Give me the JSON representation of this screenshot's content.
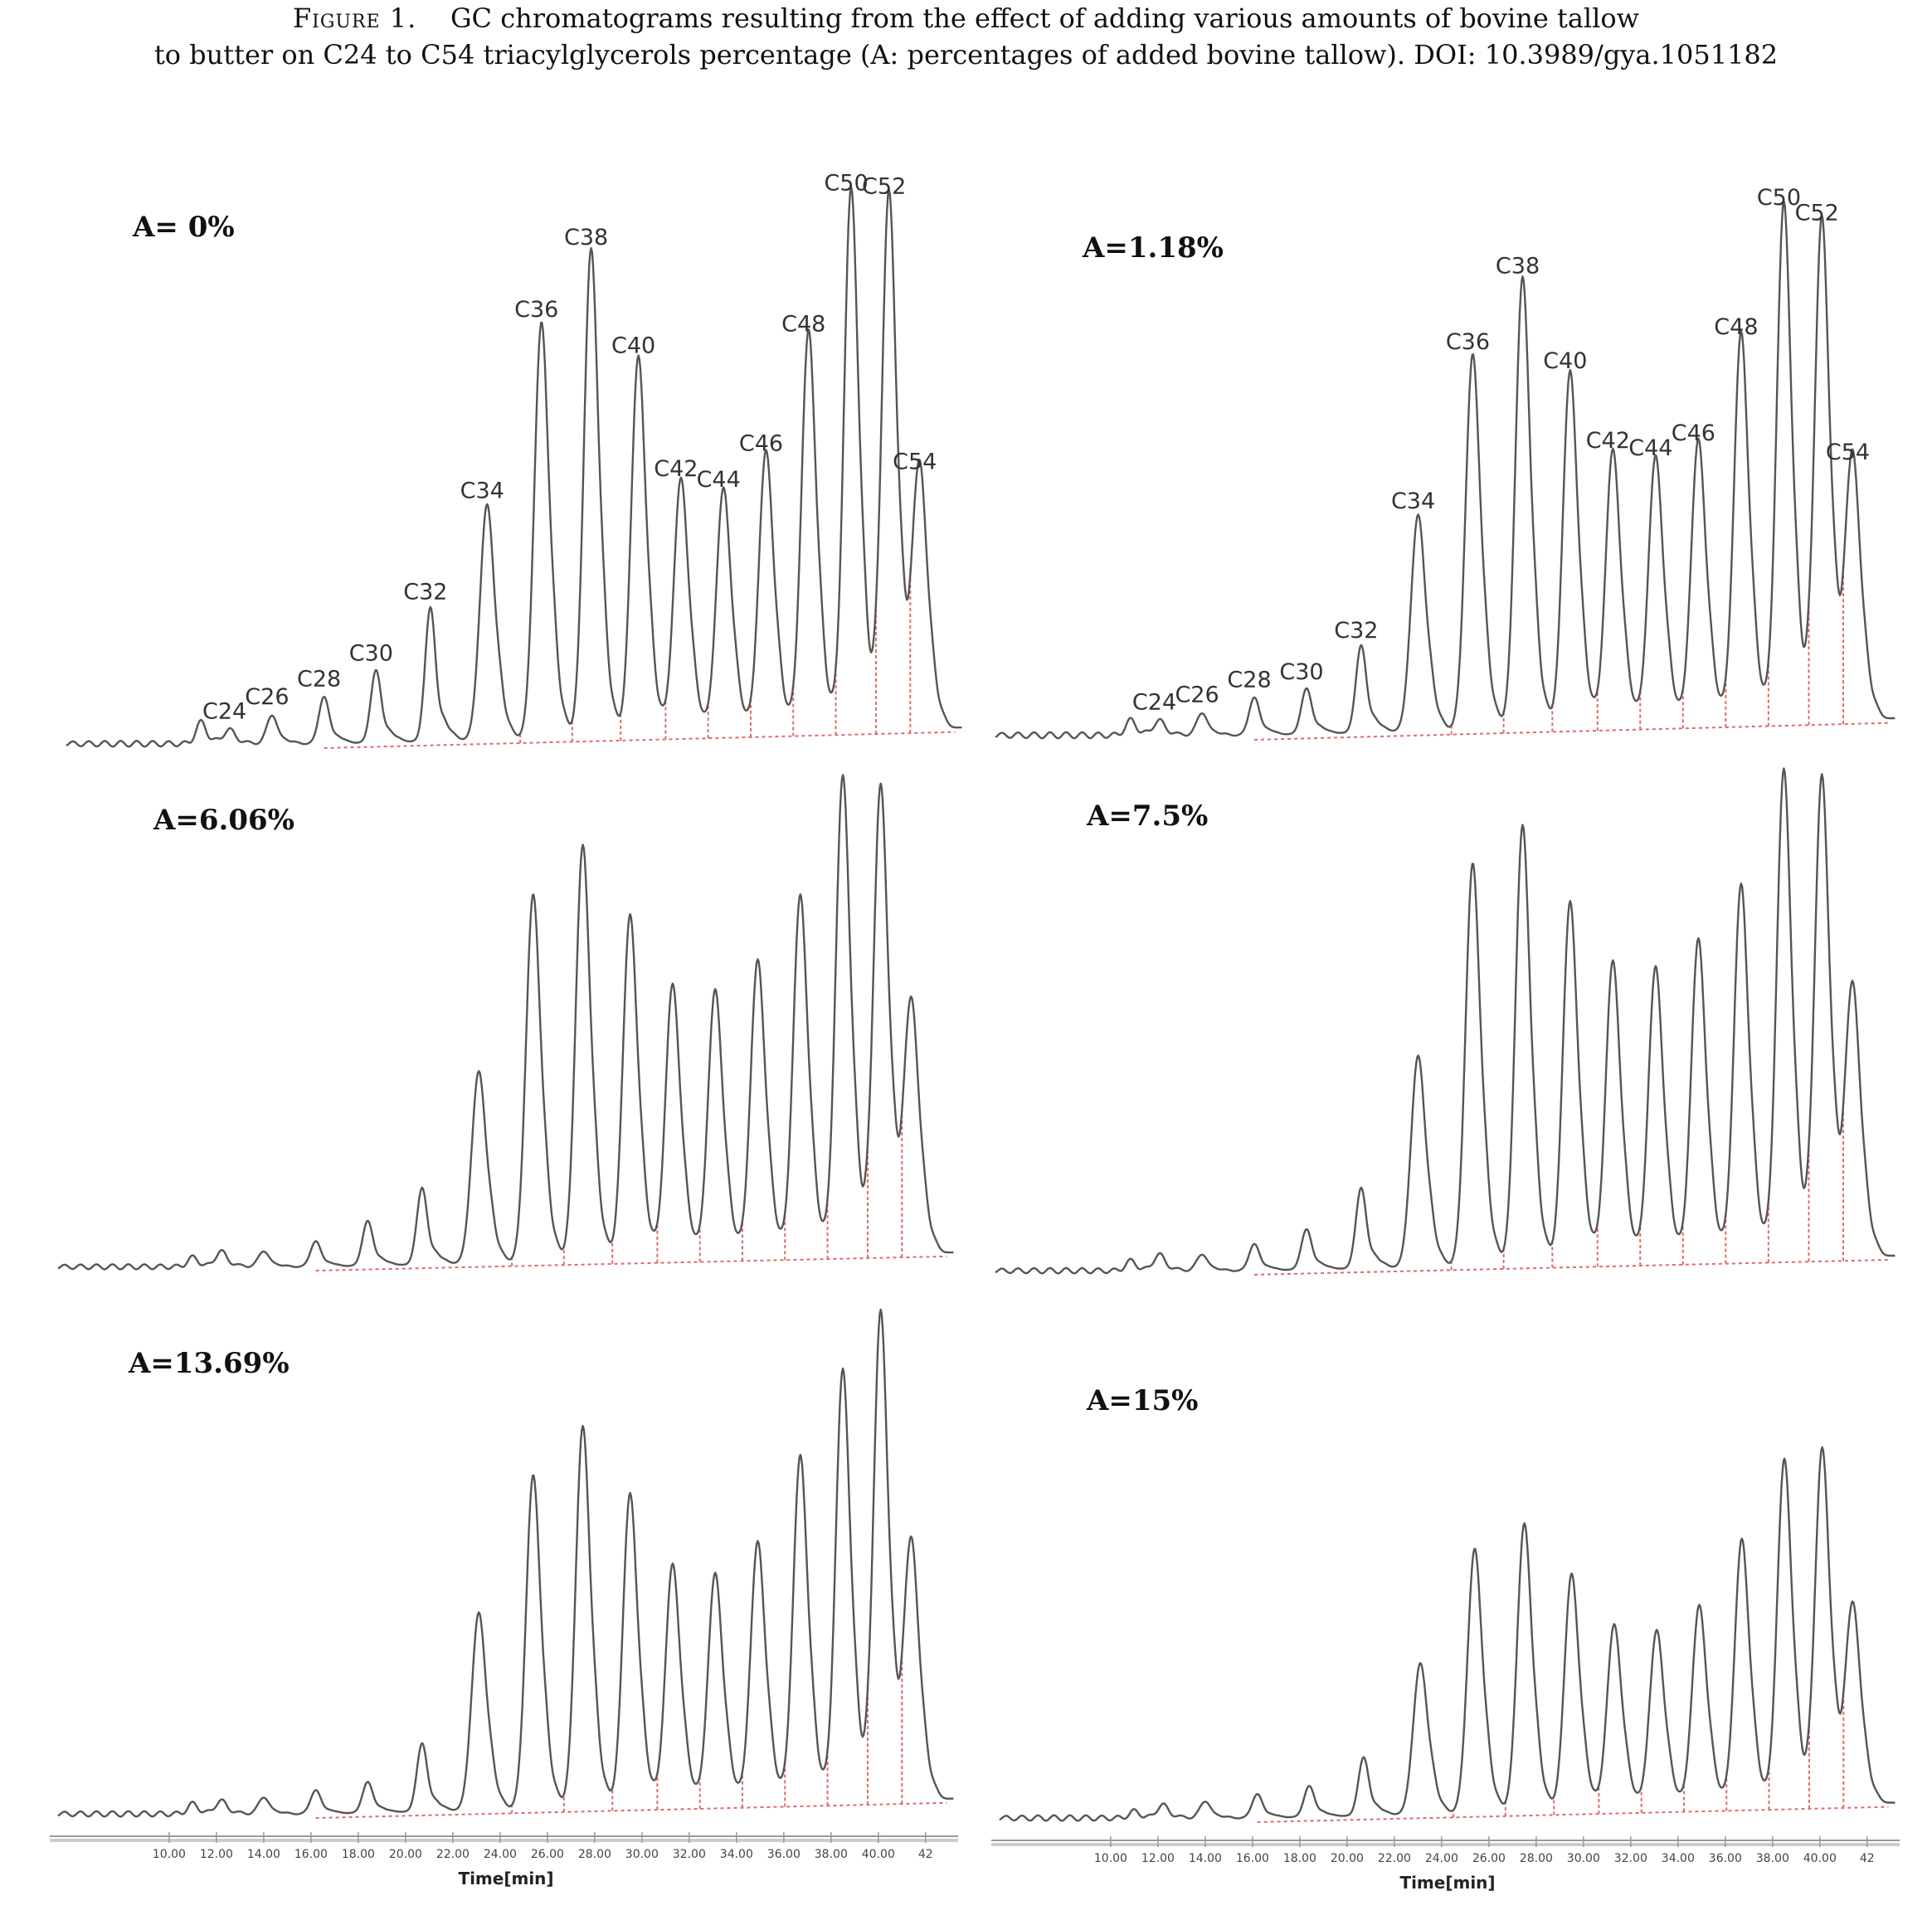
{
  "caption": {
    "figure_label": "Figure 1.",
    "line1": "GC chromatograms resulting from the effect of adding various amounts of bovine tallow",
    "line2": "to butter on C24 to C54 triacylglycerols percentage (A: percentages of added bovine tallow). DOI: 10.3989/gya.1051182"
  },
  "colors": {
    "trace": "#555555",
    "baseline": "#e06a6a",
    "axis": "#999999"
  },
  "chart_data": [
    {
      "type": "line",
      "panel_label": "A= 0%",
      "x": [
        11.0,
        12.2,
        14.0,
        16.2,
        18.4,
        20.7,
        23.1,
        25.4,
        27.5,
        29.5,
        31.3,
        33.1,
        34.9,
        36.7,
        38.5,
        40.1,
        41.4
      ],
      "y": [
        6,
        4,
        8,
        13,
        20,
        37,
        65,
        115,
        135,
        105,
        71,
        68,
        78,
        111,
        150,
        149,
        73
      ],
      "peak_labels": [
        "",
        "C24",
        "C26",
        "C28",
        "C30",
        "C32",
        "C34",
        "C36",
        "C38",
        "C40",
        "C42",
        "C44",
        "C46",
        "C48",
        "C50",
        "C52",
        "C54"
      ],
      "xlim": [
        5.3,
        43.2
      ],
      "ylim": [
        0,
        170
      ],
      "xlabel": "",
      "x_ticks": []
    },
    {
      "type": "line",
      "panel_label": "A=1.18%",
      "x": [
        11.0,
        12.2,
        14.0,
        16.2,
        18.4,
        20.7,
        23.1,
        25.4,
        27.5,
        29.5,
        31.3,
        33.1,
        34.9,
        36.7,
        38.5,
        40.1,
        41.4
      ],
      "y": [
        4,
        4,
        6,
        10,
        12,
        23,
        57,
        99,
        119,
        94,
        73,
        71,
        75,
        103,
        137,
        133,
        70
      ],
      "peak_labels": [
        "",
        "C24",
        "C26",
        "C28",
        "C30",
        "C32",
        "C34",
        "C36",
        "C38",
        "C40",
        "C42",
        "C44",
        "C46",
        "C48",
        "C50",
        "C52",
        "C54"
      ],
      "xlim": [
        5.3,
        43.2
      ],
      "ylim": [
        0,
        160
      ],
      "xlabel": "",
      "x_ticks": []
    },
    {
      "type": "line",
      "panel_label": "A=6.06%",
      "x": [
        11.0,
        12.2,
        14.0,
        16.2,
        18.4,
        20.7,
        23.1,
        25.4,
        27.5,
        29.5,
        31.3,
        33.1,
        34.9,
        36.7,
        38.5,
        40.1,
        41.4
      ],
      "y": [
        3,
        5,
        5,
        8,
        14,
        24,
        60,
        115,
        130,
        108,
        86,
        84,
        93,
        113,
        150,
        147,
        79
      ],
      "peak_labels": [],
      "xlim": [
        5.3,
        43.2
      ],
      "ylim": [
        0,
        160
      ],
      "xlabel": "",
      "x_ticks": []
    },
    {
      "type": "line",
      "panel_label": "A=7.5%",
      "x": [
        11.0,
        12.2,
        14.0,
        16.2,
        18.4,
        20.7,
        23.1,
        25.4,
        27.5,
        29.5,
        31.3,
        33.1,
        34.9,
        36.7,
        38.5,
        40.1,
        41.4
      ],
      "y": [
        3,
        5,
        5,
        8,
        12,
        24,
        63,
        120,
        131,
        108,
        90,
        88,
        96,
        112,
        146,
        144,
        81
      ],
      "peak_labels": [],
      "xlim": [
        5.3,
        43.2
      ],
      "ylim": [
        0,
        160
      ],
      "xlabel": "",
      "x_ticks": []
    },
    {
      "type": "line",
      "panel_label": "A=13.69%",
      "x": [
        11.0,
        12.2,
        14.0,
        16.2,
        18.4,
        20.7,
        23.1,
        25.4,
        27.5,
        29.5,
        31.3,
        33.1,
        34.9,
        36.7,
        38.5,
        40.1,
        41.4
      ],
      "y": [
        3,
        4,
        5,
        7,
        9,
        20,
        58,
        98,
        112,
        92,
        71,
        68,
        77,
        102,
        127,
        144,
        76
      ],
      "peak_labels": [],
      "xlim": [
        5.3,
        43.2
      ],
      "ylim": [
        0,
        160
      ],
      "xlabel": "Time[min]",
      "x_ticks": [
        "10.00",
        "12.00",
        "14.00",
        "16.00",
        "18.00",
        "20.00",
        "22.00",
        "24.00",
        "26.00",
        "28.00",
        "30.00",
        "32.00",
        "34.00",
        "36.00",
        "38.00",
        "40.00",
        "42"
      ]
    },
    {
      "type": "line",
      "panel_label": "A=15%",
      "x": [
        11.0,
        12.2,
        14.0,
        16.2,
        18.4,
        20.7,
        23.1,
        25.4,
        27.5,
        29.5,
        31.3,
        33.1,
        34.9,
        36.7,
        38.5,
        40.1,
        41.4
      ],
      "y": [
        2,
        4,
        5,
        7,
        9,
        17,
        44,
        77,
        84,
        69,
        54,
        52,
        59,
        78,
        101,
        104,
        58
      ],
      "peak_labels": [],
      "xlim": [
        5.3,
        43.2
      ],
      "ylim": [
        0,
        160
      ],
      "xlabel": "Time[min]",
      "x_ticks": [
        "10.00",
        "12.00",
        "14.00",
        "16.00",
        "18.00",
        "20.00",
        "22.00",
        "24.00",
        "26.00",
        "28.00",
        "30.00",
        "32.00",
        "34.00",
        "36.00",
        "38.00",
        "40.00",
        "42"
      ]
    }
  ]
}
